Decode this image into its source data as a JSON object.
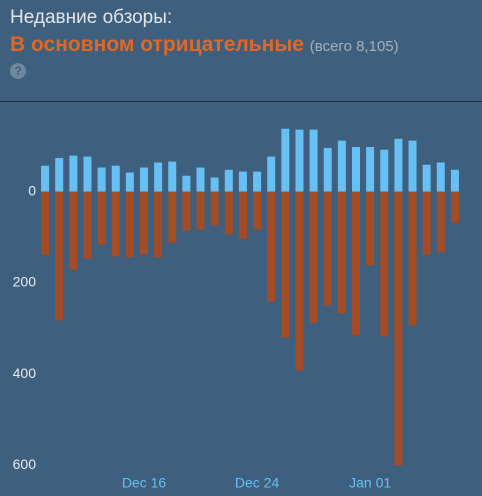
{
  "header": {
    "title": "Недавние обзоры:",
    "summary": "В основном отрицательные",
    "total": "(всего 8,105)",
    "help": "?"
  },
  "chart_data": {
    "type": "bar",
    "categories": [
      null,
      null,
      null,
      null,
      null,
      null,
      null,
      "Dec 16",
      null,
      null,
      null,
      null,
      null,
      null,
      null,
      "Dec 24",
      null,
      null,
      null,
      null,
      null,
      null,
      null,
      "Jan 01",
      null,
      null,
      null,
      null,
      null,
      null
    ],
    "series": [
      {
        "color": "#66c0f4",
        "values": [
          57,
          74,
          79,
          77,
          53,
          57,
          42,
          53,
          64,
          66,
          35,
          53,
          31,
          48,
          44,
          44,
          77,
          138,
          136,
          136,
          96,
          112,
          98,
          98,
          92,
          116,
          112,
          59,
          64,
          48
        ]
      },
      {
        "color": "#a34c25",
        "values": [
          -138,
          -282,
          -171,
          -147,
          -116,
          -142,
          -144,
          -138,
          -144,
          -112,
          -85,
          -83,
          -74,
          -94,
          -103,
          -83,
          -241,
          -320,
          -392,
          -287,
          -249,
          -267,
          -315,
          -162,
          -317,
          -600,
          -293,
          -138,
          -133,
          -68
        ]
      }
    ],
    "ylim": [
      -610,
      190
    ],
    "yticks": [
      0,
      {
        "value": -200,
        "label": "200"
      },
      {
        "value": -400,
        "label": "400"
      },
      {
        "value": -600,
        "label": "600"
      }
    ]
  }
}
